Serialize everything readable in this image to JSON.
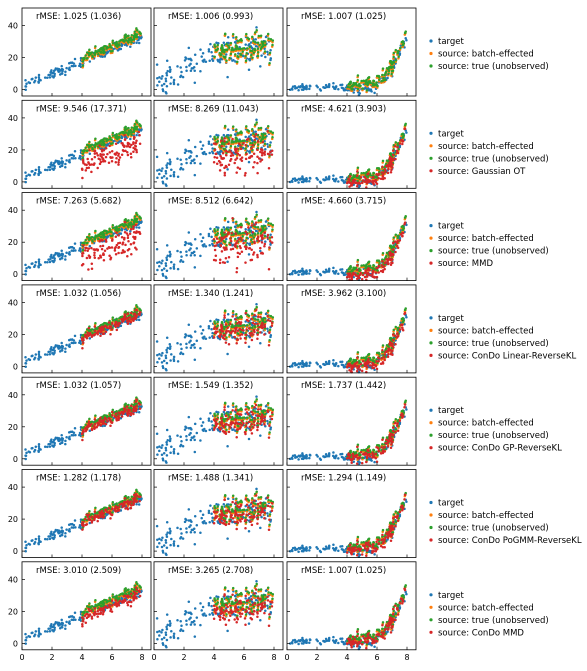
{
  "chart_data": {
    "type": "scatter",
    "layout": "grid 7 rows x 3 columns, shared x axis 0-8 (labels on bottom row), y axis 0-50 (labels on left column)",
    "xlim": [
      0,
      8.6
    ],
    "ylim": [
      -4,
      51
    ],
    "x_ticks": [
      0,
      2,
      4,
      6,
      8
    ],
    "y_ticks": [
      0,
      20,
      40
    ],
    "columns": [
      {
        "shape": "linear",
        "description": "y grows linearly with x"
      },
      {
        "shape": "saturating",
        "description": "y grows then plateaus with large spread"
      },
      {
        "shape": "exponential",
        "description": "y flat near 0 then rises sharply after x~6"
      }
    ],
    "colors": {
      "target": "#1f77b4",
      "source: batch-effected": "#ff7f0e",
      "source: true (unobserved)": "#2ca02c",
      "corrected": "#d62728"
    },
    "rows": [
      {
        "rmse": [
          "rMSE: 1.025 (1.036)",
          "rMSE: 1.006 (0.993)",
          "rMSE: 1.007 (1.025)"
        ],
        "legend": [
          "target",
          "source: batch-effected",
          "source: true (unobserved)"
        ],
        "corrected_offset": [
          0,
          0,
          0
        ],
        "has_corrected": false
      },
      {
        "rmse": [
          "rMSE: 9.546 (17.371)",
          "rMSE: 8.269 (11.043)",
          "rMSE: 4.621 (3.903)"
        ],
        "legend": [
          "target",
          "source: batch-effected",
          "source: true (unobserved)",
          "source: Gaussian OT"
        ],
        "corrected_offset": [
          -8,
          -7,
          -1
        ],
        "has_corrected": true
      },
      {
        "rmse": [
          "rMSE: 7.263  (5.682)",
          "rMSE: 8.512  (6.642)",
          "rMSE: 4.660  (3.715)"
        ],
        "legend": [
          "target",
          "source: batch-effected",
          "source: true (unobserved)",
          "source: MMD"
        ],
        "corrected_offset": [
          -9,
          -6,
          -2
        ],
        "has_corrected": true
      },
      {
        "rmse": [
          "rMSE: 1.032 (1.056)",
          "rMSE: 1.340 (1.241)",
          "rMSE: 3.962 (3.100)"
        ],
        "legend": [
          "target",
          "source: batch-effected",
          "source: true (unobserved)",
          "source: ConDo Linear-ReverseKL"
        ],
        "corrected_offset": [
          0,
          -1,
          -1
        ],
        "has_corrected": true
      },
      {
        "rmse": [
          "rMSE: 1.032 (1.057)",
          "rMSE: 1.549 (1.352)",
          "rMSE: 1.737 (1.442)"
        ],
        "legend": [
          "target",
          "source: batch-effected",
          "source: true (unobserved)",
          "source: ConDo GP-ReverseKL"
        ],
        "corrected_offset": [
          0,
          -1,
          0
        ],
        "has_corrected": true
      },
      {
        "rmse": [
          "rMSE: 1.282 (1.178)",
          "rMSE: 1.488 (1.341)",
          "rMSE: 1.294 (1.149)"
        ],
        "legend": [
          "target",
          "source: batch-effected",
          "source: true (unobserved)",
          "source: ConDo PoGMM-ReverseKL"
        ],
        "corrected_offset": [
          0,
          -1,
          0
        ],
        "has_corrected": true
      },
      {
        "rmse": [
          "rMSE: 3.010  (2.509)",
          "rMSE: 3.265  (2.708)",
          "rMSE: 1.007  (1.025)"
        ],
        "legend": [
          "target",
          "source: batch-effected",
          "source: true (unobserved)",
          "source: ConDo MMD"
        ],
        "corrected_offset": [
          -2,
          -3,
          0
        ],
        "has_corrected": true
      }
    ]
  }
}
